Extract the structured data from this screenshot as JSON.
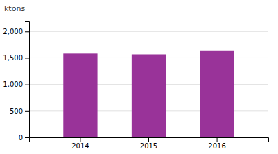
{
  "chart_data": {
    "type": "bar",
    "ylabel": "ktons",
    "categories": [
      "2014",
      "2015",
      "2016"
    ],
    "values": [
      1580,
      1565,
      1640
    ],
    "color": "#993399",
    "ylim": [
      0,
      2200
    ],
    "yticks": [
      0,
      500,
      {
        "value": 1000,
        "label": "1,000"
      },
      {
        "value": 1500,
        "label": "1,500"
      },
      {
        "value": 2000,
        "label": "2,000"
      }
    ],
    "grid": true
  }
}
